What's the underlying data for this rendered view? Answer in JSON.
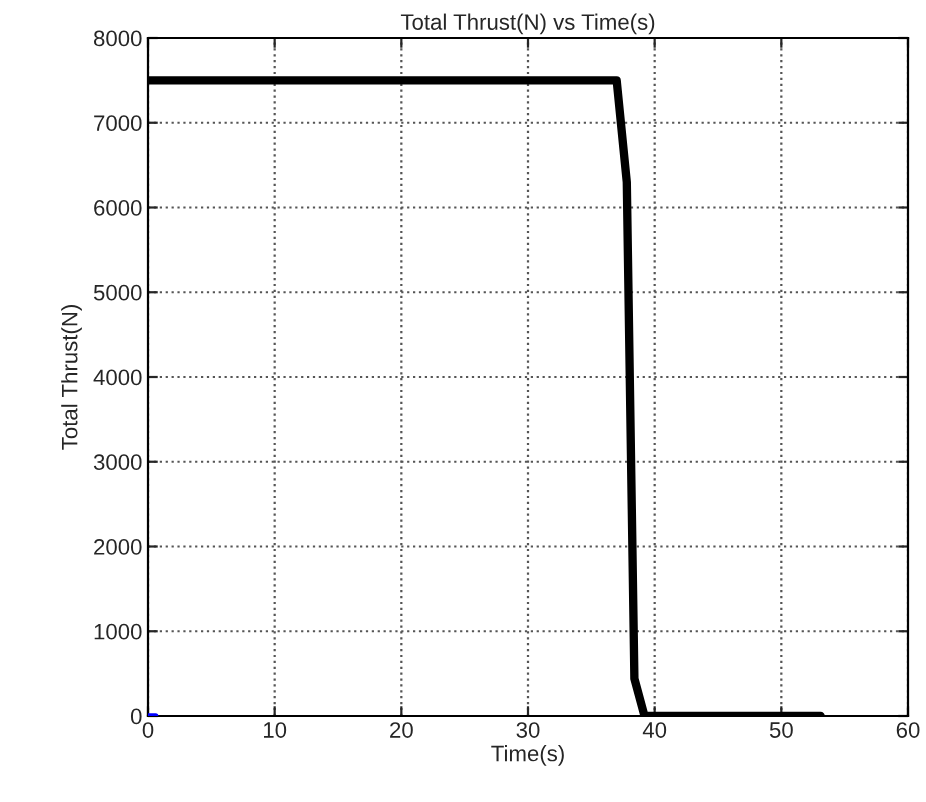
{
  "chart_data": {
    "type": "line",
    "title": "Total Thrust(N) vs Time(s)",
    "xlabel": "Time(s)",
    "ylabel": "Total Thrust(N)",
    "series": [
      {
        "color": "#000000",
        "x": [
          0,
          37,
          37.8,
          38.4,
          39.2,
          53.1
        ],
        "values": [
          7500,
          7500,
          6300,
          440,
          0,
          0
        ]
      },
      {
        "color": "#0000ff",
        "x": [
          0,
          0.6
        ],
        "values": [
          0,
          0
        ]
      }
    ],
    "xlim": [
      0,
      60
    ],
    "xticks": [
      0,
      10,
      20,
      30,
      40,
      50,
      60
    ],
    "ylim": [
      0,
      8000
    ],
    "yticks": [
      0,
      1000,
      2000,
      3000,
      4000,
      5000,
      6000,
      7000,
      8000
    ],
    "grid": true,
    "line_style": "solid"
  }
}
